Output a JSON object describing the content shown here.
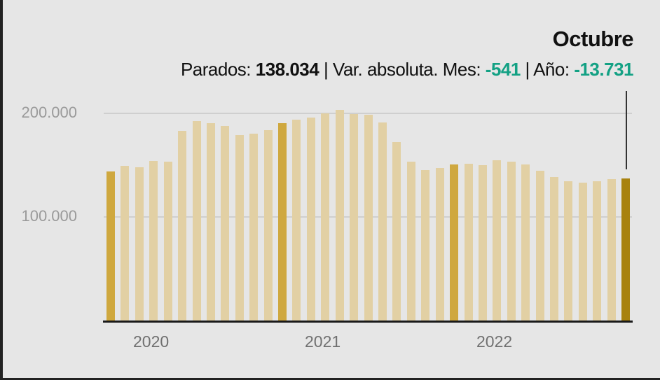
{
  "header": {
    "title": "Octubre",
    "parados_label": "Parados: ",
    "parados_value": "138.034",
    "sep1": " | Var. absoluta. Mes: ",
    "mes_value": "-541",
    "sep2": " | Año: ",
    "anio_value": "-13.731"
  },
  "axis": {
    "y_ticks": [
      "200.000",
      "100.000"
    ],
    "x_ticks": [
      "2020",
      "2021",
      "2022"
    ]
  },
  "colors": {
    "background": "#e6e6e6",
    "bar_normal": "#e2d0a4",
    "bar_january": "#cfa83f",
    "bar_current": "#a8820f",
    "negative_green": "#13a184"
  },
  "chart_data": {
    "type": "bar",
    "title": "Octubre",
    "subtitle": "Parados: 138.034 | Var. absoluta. Mes: -541 | Año: -13.731",
    "xlabel": "",
    "ylabel": "",
    "ylim": [
      0,
      200000
    ],
    "grid": true,
    "y_tick_labels": [
      "100.000",
      "200.000"
    ],
    "x_tick_labels": [
      "2020",
      "2021",
      "2022"
    ],
    "categories": [
      "2020-01",
      "2020-02",
      "2020-03",
      "2020-04",
      "2020-05",
      "2020-06",
      "2020-07",
      "2020-08",
      "2020-09",
      "2020-10",
      "2020-11",
      "2020-12",
      "2021-01",
      "2021-02",
      "2021-03",
      "2021-04",
      "2021-05",
      "2021-06",
      "2021-07",
      "2021-08",
      "2021-09",
      "2021-10",
      "2021-11",
      "2021-12",
      "2022-01",
      "2022-02",
      "2022-03",
      "2022-04",
      "2022-05",
      "2022-06",
      "2022-07",
      "2022-08",
      "2022-09",
      "2022-10",
      "2022-11",
      "2022-12",
      "2023-01"
    ],
    "values": [
      144600,
      150000,
      148600,
      154700,
      154100,
      183800,
      193200,
      191200,
      188500,
      179700,
      181100,
      184500,
      191200,
      194600,
      196600,
      200700,
      204100,
      200000,
      199300,
      191900,
      173000,
      154100,
      145900,
      148000,
      151400,
      152000,
      150700,
      155400,
      154100,
      151400,
      145300,
      139200,
      135100,
      133800,
      135100,
      137200,
      138034
    ],
    "highlight_indices": [
      0,
      12,
      24
    ],
    "current_index": 36,
    "legend": []
  }
}
